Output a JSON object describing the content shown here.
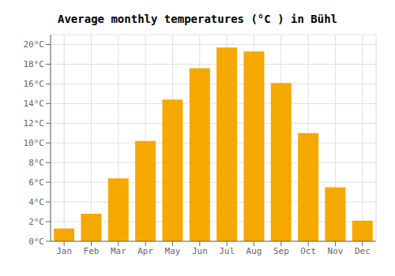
{
  "chart_data": {
    "type": "bar",
    "title": "Average monthly temperatures (°C ) in Bühl",
    "categories": [
      "Jan",
      "Feb",
      "Mar",
      "Apr",
      "May",
      "Jun",
      "Jul",
      "Aug",
      "Sep",
      "Oct",
      "Nov",
      "Dec"
    ],
    "values": [
      1.3,
      2.8,
      6.4,
      10.2,
      14.4,
      17.6,
      19.7,
      19.3,
      16.1,
      11.0,
      5.5,
      2.1
    ],
    "color": "#F5A800",
    "ylim": [
      0,
      21
    ],
    "yticks": [
      {
        "value": 0,
        "label": "0°C"
      },
      {
        "value": 2,
        "label": "2°C"
      },
      {
        "value": 4,
        "label": "4°C"
      },
      {
        "value": 6,
        "label": "6°C"
      },
      {
        "value": 8,
        "label": "8°C"
      },
      {
        "value": 10,
        "label": "10°C"
      },
      {
        "value": 12,
        "label": "12°C"
      },
      {
        "value": 14,
        "label": "14°C"
      },
      {
        "value": 16,
        "label": "16°C"
      },
      {
        "value": 18,
        "label": "18°C"
      },
      {
        "value": 20,
        "label": "20°C"
      }
    ],
    "grid": true
  }
}
